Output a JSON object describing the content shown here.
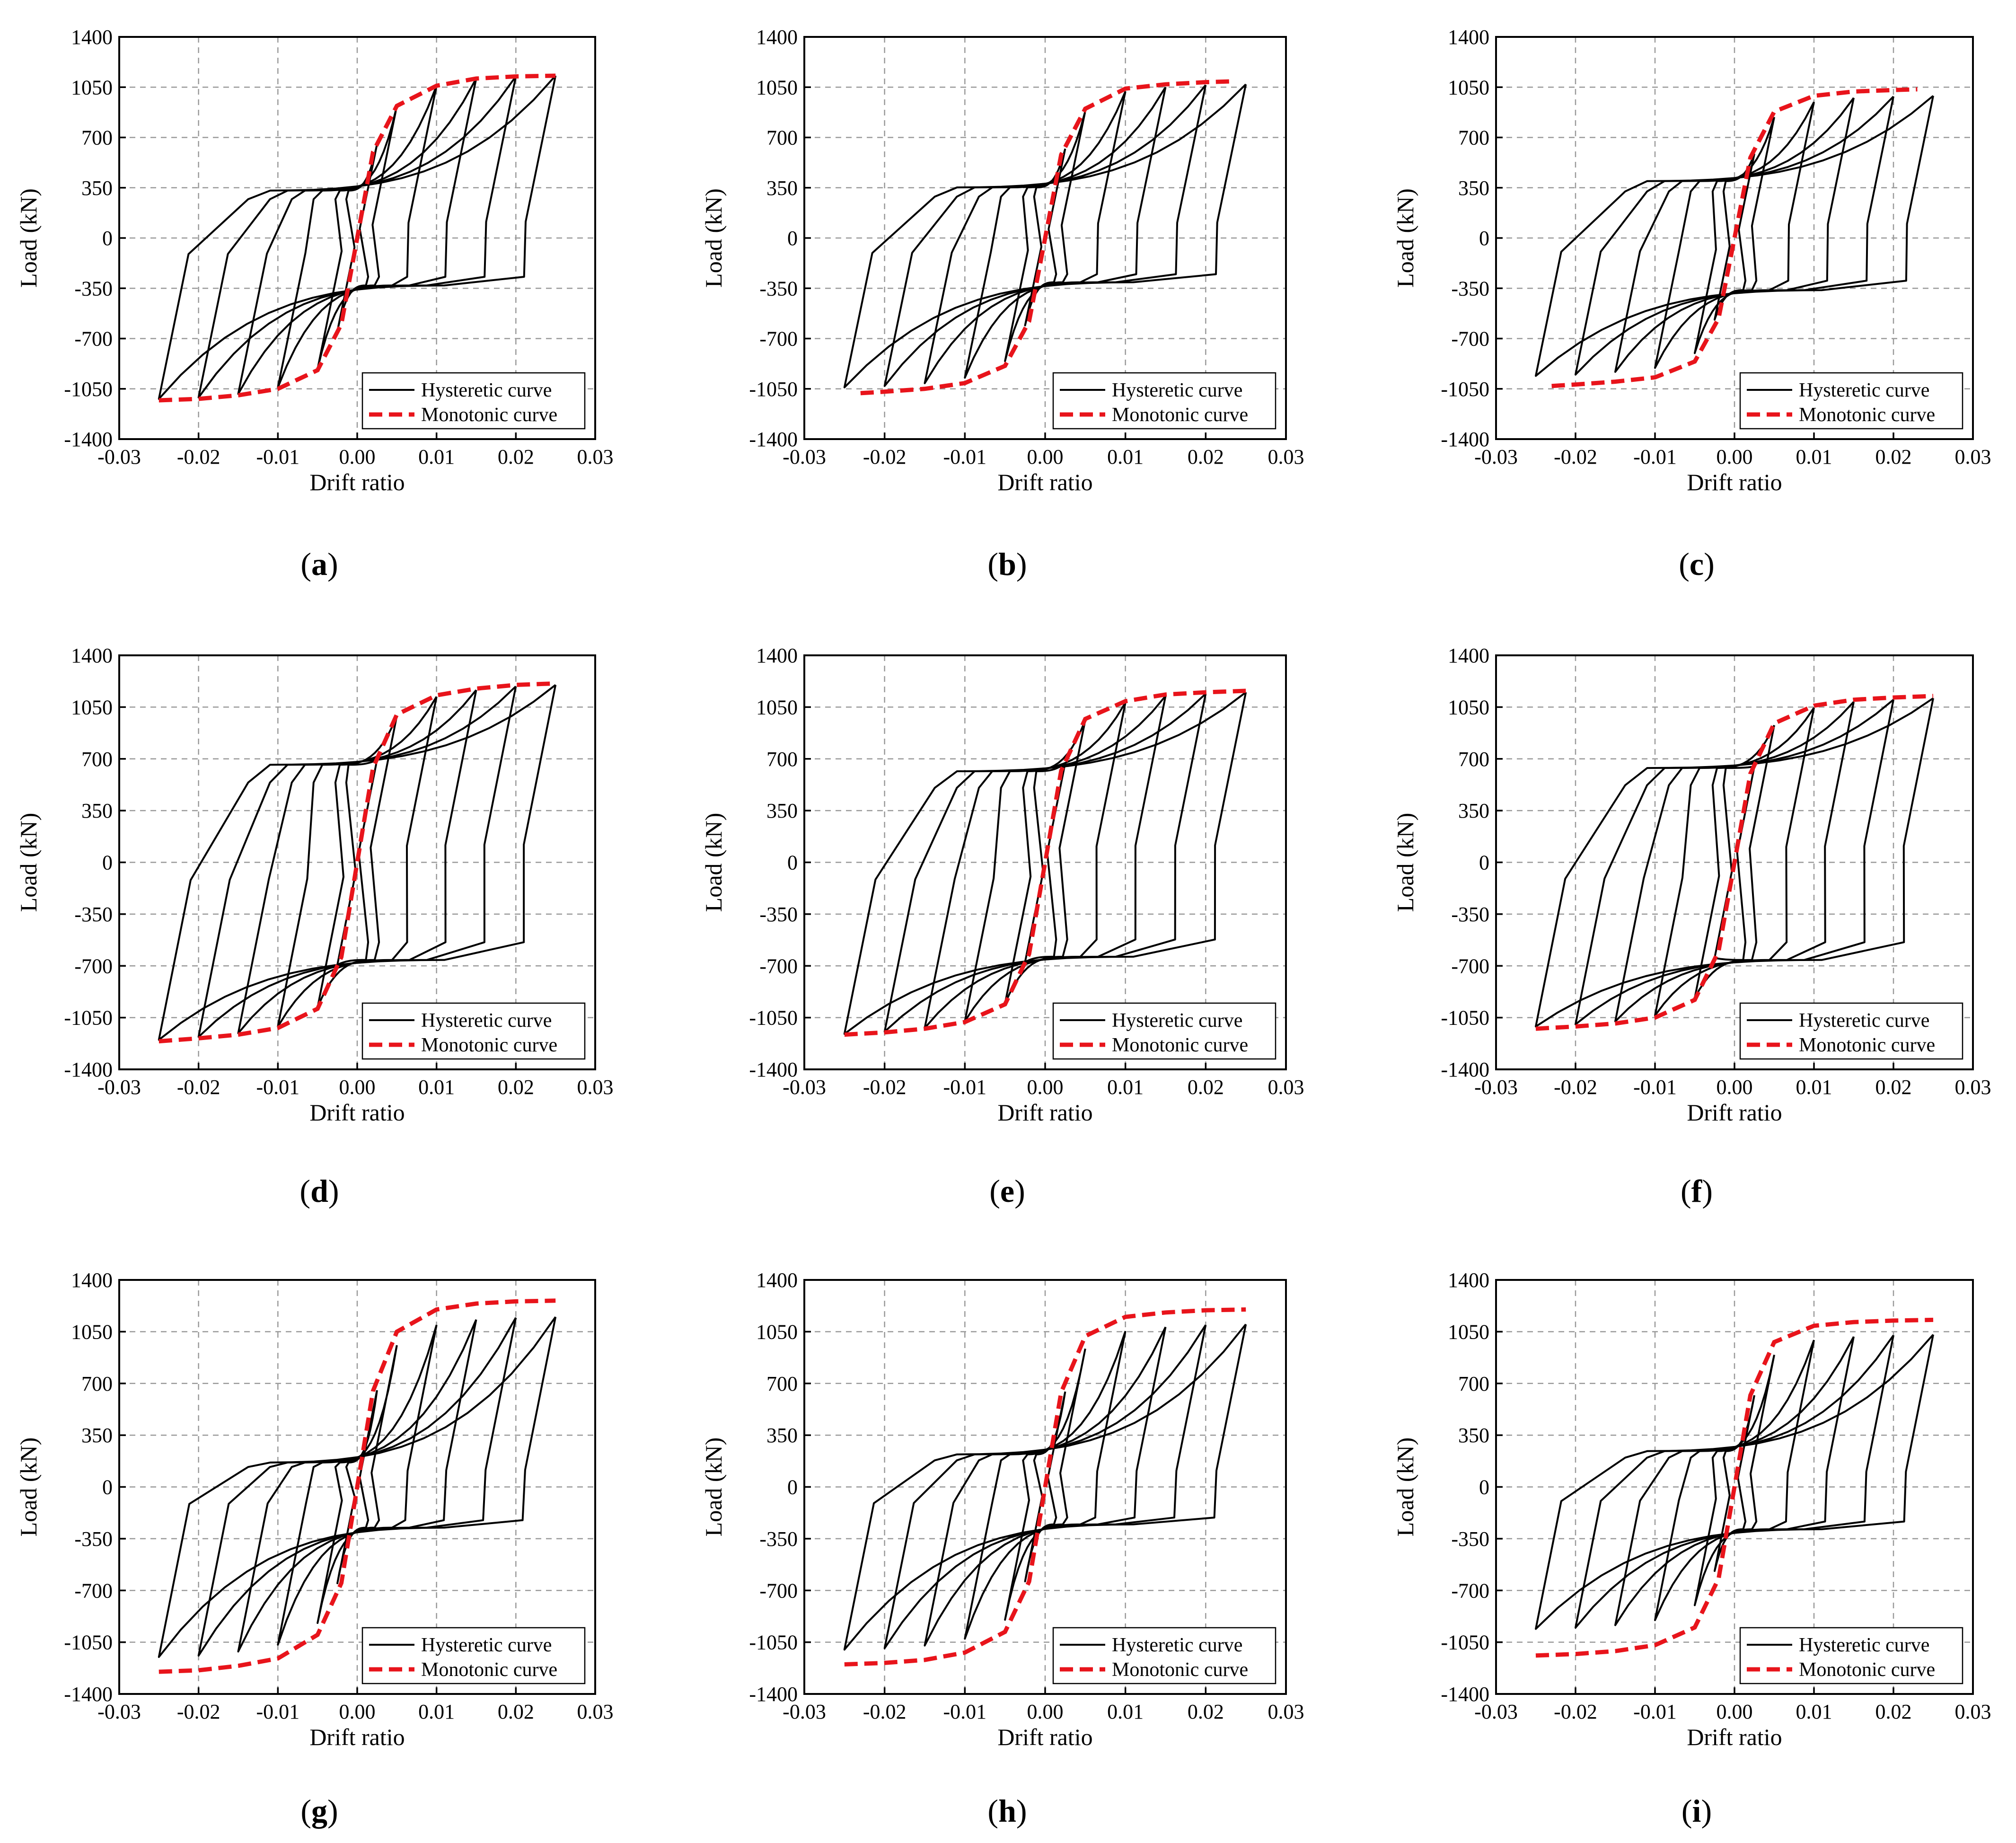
{
  "shared": {
    "xlabel": "Drift ratio",
    "ylabel": "Load (kN)",
    "legend": {
      "hysteretic": "Hysteretic curve",
      "monotonic": "Monotonic curve"
    },
    "colors": {
      "hysteretic": "#000000",
      "monotonic": "#e8141b"
    }
  },
  "chart_data": [
    {
      "type": "line",
      "caption": "a",
      "xlim": [
        -0.03,
        0.03
      ],
      "ylim": [
        -1400,
        1400
      ],
      "xticks": [
        "-0.03",
        "-0.02",
        "-0.01",
        "0.00",
        "0.01",
        "0.02",
        "0.03"
      ],
      "yticks": [
        "1400",
        "1050",
        "700",
        "350",
        "0",
        "-350",
        "-700",
        "-1050",
        "-1400"
      ],
      "grid": true,
      "legend_position": "bottom-right",
      "series": [
        {
          "name": "Hysteretic curve",
          "peak_drifts": [
            0.0025,
            0.005,
            0.01,
            0.015,
            0.02,
            0.025
          ],
          "peak_pos": 1130,
          "peak_neg": -1120,
          "pinch_pos": 300,
          "pinch_neg": -300
        },
        {
          "name": "Monotonic curve",
          "x": [
            -0.025,
            -0.02,
            -0.015,
            -0.01,
            -0.005,
            -0.002,
            0,
            0.002,
            0.005,
            0.01,
            0.015,
            0.02,
            0.025
          ],
          "y": [
            -1130,
            -1120,
            -1095,
            -1050,
            -920,
            -600,
            0,
            600,
            920,
            1060,
            1110,
            1125,
            1130
          ]
        }
      ]
    },
    {
      "type": "line",
      "caption": "b",
      "xlim": [
        -0.03,
        0.03
      ],
      "ylim": [
        -1400,
        1400
      ],
      "xticks": [
        "-0.03",
        "-0.02",
        "-0.01",
        "0.00",
        "0.01",
        "0.02",
        "0.03"
      ],
      "yticks": [
        "1400",
        "1050",
        "700",
        "350",
        "0",
        "-350",
        "-700",
        "-1050",
        "-1400"
      ],
      "grid": true,
      "legend_position": "bottom-right",
      "series": [
        {
          "name": "Hysteretic curve",
          "peak_drifts": [
            0.0025,
            0.005,
            0.01,
            0.015,
            0.02,
            0.025
          ],
          "peak_pos": 1070,
          "peak_neg": -1040,
          "pinch_pos": 320,
          "pinch_neg": -280
        },
        {
          "name": "Monotonic curve",
          "x": [
            -0.023,
            -0.02,
            -0.015,
            -0.01,
            -0.005,
            -0.002,
            0,
            0.002,
            0.005,
            0.01,
            0.015,
            0.02,
            0.023
          ],
          "y": [
            -1080,
            -1070,
            -1050,
            -1010,
            -890,
            -580,
            0,
            580,
            900,
            1040,
            1070,
            1085,
            1090
          ]
        }
      ]
    },
    {
      "type": "line",
      "caption": "c",
      "xlim": [
        -0.03,
        0.03
      ],
      "ylim": [
        -1400,
        1400
      ],
      "xticks": [
        "-0.03",
        "-0.02",
        "-0.01",
        "0.00",
        "0.01",
        "0.02",
        "0.03"
      ],
      "yticks": [
        "1400",
        "1050",
        "700",
        "350",
        "0",
        "-350",
        "-700",
        "-1050",
        "-1400"
      ],
      "grid": true,
      "legend_position": "bottom-right",
      "series": [
        {
          "name": "Hysteretic curve",
          "peak_drifts": [
            0.0025,
            0.005,
            0.01,
            0.015,
            0.02,
            0.025
          ],
          "peak_pos": 990,
          "peak_neg": -960,
          "pinch_pos": 360,
          "pinch_neg": -330
        },
        {
          "name": "Monotonic curve",
          "x": [
            -0.023,
            -0.02,
            -0.015,
            -0.01,
            -0.005,
            -0.002,
            0,
            0.002,
            0.005,
            0.01,
            0.015,
            0.02,
            0.023
          ],
          "y": [
            -1030,
            -1020,
            -1000,
            -970,
            -860,
            -560,
            0,
            560,
            880,
            990,
            1020,
            1030,
            1035
          ]
        }
      ]
    },
    {
      "type": "line",
      "caption": "d",
      "xlim": [
        -0.03,
        0.03
      ],
      "ylim": [
        -1400,
        1400
      ],
      "xticks": [
        "-0.03",
        "-0.02",
        "-0.01",
        "0.00",
        "0.01",
        "0.02",
        "0.03"
      ],
      "yticks": [
        "1400",
        "1050",
        "700",
        "350",
        "0",
        "-350",
        "-700",
        "-1050",
        "-1400"
      ],
      "grid": true,
      "legend_position": "bottom-right",
      "series": [
        {
          "name": "Hysteretic curve",
          "peak_drifts": [
            0.0025,
            0.005,
            0.01,
            0.015,
            0.02,
            0.025
          ],
          "peak_pos": 1200,
          "peak_neg": -1200,
          "pinch_pos": 600,
          "pinch_neg": -600
        },
        {
          "name": "Monotonic curve",
          "x": [
            -0.025,
            -0.02,
            -0.015,
            -0.01,
            -0.005,
            -0.002,
            0,
            0.002,
            0.005,
            0.01,
            0.015,
            0.02,
            0.025
          ],
          "y": [
            -1210,
            -1190,
            -1165,
            -1120,
            -990,
            -640,
            0,
            640,
            1000,
            1130,
            1175,
            1200,
            1210
          ]
        }
      ]
    },
    {
      "type": "line",
      "caption": "e",
      "xlim": [
        -0.03,
        0.03
      ],
      "ylim": [
        -1400,
        1400
      ],
      "xticks": [
        "-0.03",
        "-0.02",
        "-0.01",
        "0.00",
        "0.01",
        "0.02",
        "0.03"
      ],
      "yticks": [
        "1400",
        "1050",
        "700",
        "350",
        "0",
        "-350",
        "-700",
        "-1050",
        "-1400"
      ],
      "grid": true,
      "legend_position": "bottom-right",
      "series": [
        {
          "name": "Hysteretic curve",
          "peak_drifts": [
            0.0025,
            0.005,
            0.01,
            0.015,
            0.02,
            0.025
          ],
          "peak_pos": 1150,
          "peak_neg": -1160,
          "pinch_pos": 560,
          "pinch_neg": -580
        },
        {
          "name": "Monotonic curve",
          "x": [
            -0.025,
            -0.02,
            -0.015,
            -0.01,
            -0.005,
            -0.002,
            0,
            0.002,
            0.005,
            0.01,
            0.015,
            0.02,
            0.025
          ],
          "y": [
            -1165,
            -1150,
            -1125,
            -1080,
            -960,
            -620,
            0,
            620,
            970,
            1090,
            1135,
            1150,
            1160
          ]
        }
      ]
    },
    {
      "type": "line",
      "caption": "f",
      "xlim": [
        -0.03,
        0.03
      ],
      "ylim": [
        -1400,
        1400
      ],
      "xticks": [
        "-0.03",
        "-0.02",
        "-0.01",
        "0.00",
        "0.01",
        "0.02",
        "0.03"
      ],
      "yticks": [
        "1400",
        "1050",
        "700",
        "350",
        "0",
        "-350",
        "-700",
        "-1050",
        "-1400"
      ],
      "grid": true,
      "legend_position": "bottom-right",
      "series": [
        {
          "name": "Hysteretic curve",
          "peak_drifts": [
            0.0025,
            0.005,
            0.01,
            0.015,
            0.02,
            0.025
          ],
          "peak_pos": 1110,
          "peak_neg": -1110,
          "pinch_pos": 580,
          "pinch_neg": -600
        },
        {
          "name": "Monotonic curve",
          "x": [
            -0.025,
            -0.02,
            -0.015,
            -0.01,
            -0.005,
            -0.002,
            0,
            0.002,
            0.005,
            0.01,
            0.015,
            0.02,
            0.025
          ],
          "y": [
            -1125,
            -1110,
            -1090,
            -1050,
            -930,
            -600,
            0,
            600,
            940,
            1060,
            1100,
            1115,
            1125
          ]
        }
      ]
    },
    {
      "type": "line",
      "caption": "g",
      "xlim": [
        -0.03,
        0.03
      ],
      "ylim": [
        -1400,
        1400
      ],
      "xticks": [
        "-0.03",
        "-0.02",
        "-0.01",
        "0.00",
        "0.01",
        "0.02",
        "0.03"
      ],
      "yticks": [
        "1400",
        "1050",
        "700",
        "350",
        "0",
        "-350",
        "-700",
        "-1050",
        "-1400"
      ],
      "grid": true,
      "legend_position": "bottom-right",
      "series": [
        {
          "name": "Hysteretic curve",
          "peak_drifts": [
            0.0025,
            0.005,
            0.01,
            0.015,
            0.02,
            0.025
          ],
          "peak_pos": 1150,
          "peak_neg": -1150,
          "pinch_pos": 150,
          "pinch_neg": -250
        },
        {
          "name": "Monotonic curve",
          "x": [
            -0.025,
            -0.02,
            -0.015,
            -0.01,
            -0.005,
            -0.002,
            0,
            0.002,
            0.005,
            0.01,
            0.015,
            0.02,
            0.025
          ],
          "y": [
            -1250,
            -1240,
            -1210,
            -1160,
            -1000,
            -650,
            0,
            650,
            1050,
            1200,
            1240,
            1255,
            1260
          ]
        }
      ]
    },
    {
      "type": "line",
      "caption": "h",
      "xlim": [
        -0.03,
        0.03
      ],
      "ylim": [
        -1400,
        1400
      ],
      "xticks": [
        "-0.03",
        "-0.02",
        "-0.01",
        "0.00",
        "0.01",
        "0.02",
        "0.03"
      ],
      "yticks": [
        "1400",
        "1050",
        "700",
        "350",
        "0",
        "-350",
        "-700",
        "-1050",
        "-1400"
      ],
      "grid": true,
      "legend_position": "bottom-right",
      "series": [
        {
          "name": "Hysteretic curve",
          "peak_drifts": [
            0.0025,
            0.005,
            0.01,
            0.015,
            0.02,
            0.025
          ],
          "peak_pos": 1100,
          "peak_neg": -1100,
          "pinch_pos": 200,
          "pinch_neg": -230
        },
        {
          "name": "Monotonic curve",
          "x": [
            -0.025,
            -0.02,
            -0.015,
            -0.01,
            -0.005,
            -0.002,
            0,
            0.002,
            0.005,
            0.01,
            0.015,
            0.02,
            0.025
          ],
          "y": [
            -1200,
            -1190,
            -1170,
            -1120,
            -980,
            -640,
            0,
            640,
            1020,
            1150,
            1180,
            1195,
            1200
          ]
        }
      ]
    },
    {
      "type": "line",
      "caption": "i",
      "xlim": [
        -0.03,
        0.03
      ],
      "ylim": [
        -1400,
        1400
      ],
      "xticks": [
        "-0.03",
        "-0.02",
        "-0.01",
        "0.00",
        "0.01",
        "0.02",
        "0.03"
      ],
      "yticks": [
        "1400",
        "1050",
        "700",
        "350",
        "0",
        "-350",
        "-700",
        "-1050",
        "-1400"
      ],
      "grid": true,
      "legend_position": "bottom-right",
      "series": [
        {
          "name": "Hysteretic curve",
          "peak_drifts": [
            0.0025,
            0.005,
            0.01,
            0.015,
            0.02,
            0.025
          ],
          "peak_pos": 1030,
          "peak_neg": -960,
          "pinch_pos": 220,
          "pinch_neg": -260
        },
        {
          "name": "Monotonic curve",
          "x": [
            -0.025,
            -0.02,
            -0.015,
            -0.01,
            -0.005,
            -0.002,
            0,
            0.002,
            0.005,
            0.01,
            0.015,
            0.02,
            0.025
          ],
          "y": [
            -1140,
            -1130,
            -1110,
            -1070,
            -950,
            -620,
            0,
            620,
            980,
            1090,
            1115,
            1125,
            1130
          ]
        }
      ]
    }
  ]
}
